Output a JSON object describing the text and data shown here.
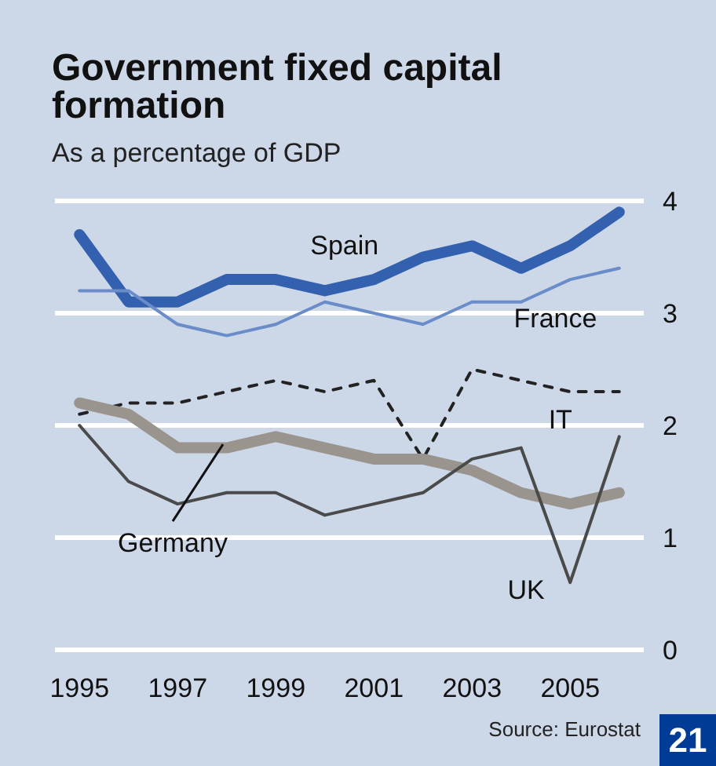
{
  "chart_data": {
    "type": "line",
    "title": "Government fixed capital formation",
    "subtitle": "As a percentage of GDP",
    "x": [
      1995,
      1996,
      1997,
      1998,
      1999,
      2000,
      2001,
      2002,
      2003,
      2004,
      2005,
      2006
    ],
    "series": [
      {
        "name": "Spain",
        "color": "#3361b0",
        "line_style": "solid",
        "values": [
          3.7,
          3.1,
          3.1,
          3.3,
          3.3,
          3.2,
          3.3,
          3.5,
          3.6,
          3.4,
          3.6,
          3.9
        ]
      },
      {
        "name": "France",
        "color": "#6a8cc8",
        "line_style": "solid",
        "values": [
          3.2,
          3.2,
          2.9,
          2.8,
          2.9,
          3.1,
          3.0,
          2.9,
          3.1,
          3.1,
          3.3,
          3.4
        ]
      },
      {
        "name": "IT",
        "color": "#222222",
        "line_style": "dashed",
        "values": [
          2.1,
          2.2,
          2.2,
          2.3,
          2.4,
          2.3,
          2.4,
          1.7,
          2.5,
          2.4,
          2.3,
          2.3
        ]
      },
      {
        "name": "Germany",
        "color": "#9a948e",
        "line_style": "solid",
        "values": [
          2.2,
          2.1,
          1.8,
          1.8,
          1.9,
          1.8,
          1.7,
          1.7,
          1.6,
          1.4,
          1.3,
          1.4
        ]
      },
      {
        "name": "UK",
        "color": "#4a4a4a",
        "line_style": "solid",
        "values": [
          2.0,
          1.5,
          1.3,
          1.4,
          1.4,
          1.2,
          1.3,
          1.4,
          1.7,
          1.8,
          0.6,
          1.9
        ]
      }
    ],
    "xlim": [
      1994.5,
      2006.5
    ],
    "xticks": [
      1995,
      1997,
      1999,
      2001,
      2003,
      2005
    ],
    "ylim": [
      0,
      4
    ],
    "yticks": [
      0,
      1,
      2,
      3,
      4
    ],
    "grid": "y",
    "legend": false,
    "marker": "none",
    "annotations": [
      "Source: Eurostat",
      "21"
    ]
  }
}
